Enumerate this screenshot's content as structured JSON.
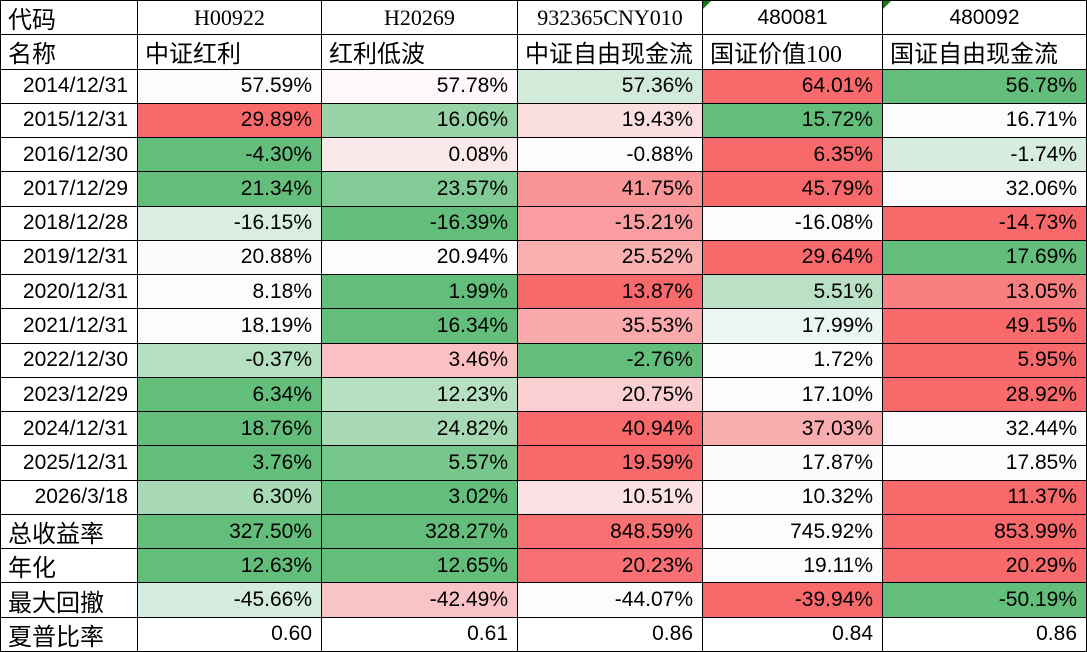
{
  "table": {
    "corner_labels": {
      "code": "代码",
      "name": "名称"
    },
    "columns": [
      {
        "code": "H00922",
        "name": "中证红利",
        "flag": false
      },
      {
        "code": "H20269",
        "name": "红利低波",
        "flag": false
      },
      {
        "code": "932365CNY010",
        "name": "中证自由现金流",
        "flag": false
      },
      {
        "code": "480081",
        "name": "国证价值100",
        "flag": true
      },
      {
        "code": "480092",
        "name": "国证自由现金流",
        "flag": true
      }
    ],
    "rows": [
      {
        "label": "2014/12/31",
        "label_style": "date",
        "format": "percent",
        "heatmap": true,
        "values": [
          57.59,
          57.78,
          57.36,
          64.01,
          56.78
        ]
      },
      {
        "label": "2015/12/31",
        "label_style": "date",
        "format": "percent",
        "heatmap": true,
        "values": [
          29.89,
          16.06,
          19.43,
          15.72,
          16.71
        ]
      },
      {
        "label": "2016/12/30",
        "label_style": "date",
        "format": "percent",
        "heatmap": true,
        "values": [
          -4.3,
          0.08,
          -0.88,
          6.35,
          -1.74
        ]
      },
      {
        "label": "2017/12/29",
        "label_style": "date",
        "format": "percent",
        "heatmap": true,
        "values": [
          21.34,
          23.57,
          41.75,
          45.79,
          32.06
        ]
      },
      {
        "label": "2018/12/28",
        "label_style": "date",
        "format": "percent",
        "heatmap": true,
        "values": [
          -16.15,
          -16.39,
          -15.21,
          -16.08,
          -14.73
        ]
      },
      {
        "label": "2019/12/31",
        "label_style": "date",
        "format": "percent",
        "heatmap": true,
        "values": [
          20.88,
          20.94,
          25.52,
          29.64,
          17.69
        ]
      },
      {
        "label": "2020/12/31",
        "label_style": "date",
        "format": "percent",
        "heatmap": true,
        "values": [
          8.18,
          1.99,
          13.87,
          5.51,
          13.05
        ]
      },
      {
        "label": "2021/12/31",
        "label_style": "date",
        "format": "percent",
        "heatmap": true,
        "values": [
          18.19,
          16.34,
          35.53,
          17.99,
          49.15
        ]
      },
      {
        "label": "2022/12/30",
        "label_style": "date",
        "format": "percent",
        "heatmap": true,
        "values": [
          -0.37,
          3.46,
          -2.76,
          1.72,
          5.95
        ]
      },
      {
        "label": "2023/12/29",
        "label_style": "date",
        "format": "percent",
        "heatmap": true,
        "values": [
          6.34,
          12.23,
          20.75,
          17.1,
          28.92
        ]
      },
      {
        "label": "2024/12/31",
        "label_style": "date",
        "format": "percent",
        "heatmap": true,
        "values": [
          18.76,
          24.82,
          40.94,
          37.03,
          32.44
        ]
      },
      {
        "label": "2025/12/31",
        "label_style": "date",
        "format": "percent",
        "heatmap": true,
        "values": [
          3.76,
          5.57,
          19.59,
          17.87,
          17.85
        ]
      },
      {
        "label": "2026/3/18",
        "label_style": "date",
        "format": "percent",
        "heatmap": true,
        "values": [
          6.3,
          3.02,
          10.51,
          10.32,
          11.37
        ]
      },
      {
        "label": "总收益率",
        "label_style": "cjk",
        "format": "percent",
        "heatmap": true,
        "values": [
          327.5,
          328.27,
          848.59,
          745.92,
          853.99
        ]
      },
      {
        "label": "年化",
        "label_style": "cjk",
        "format": "percent",
        "heatmap": true,
        "values": [
          12.63,
          12.65,
          20.23,
          19.11,
          20.29
        ]
      },
      {
        "label": "最大回撤",
        "label_style": "cjk",
        "format": "percent",
        "heatmap": true,
        "values": [
          -45.66,
          -42.49,
          -44.07,
          -39.94,
          -50.19
        ]
      },
      {
        "label": "夏普比率",
        "label_style": "cjk",
        "format": "number",
        "heatmap": false,
        "values": [
          0.6,
          0.61,
          0.86,
          0.84,
          0.86
        ]
      }
    ],
    "heatmap_colors": {
      "min_color": "#63BE7B",
      "mid_color": "#FCFCFF",
      "max_color": "#F8696B"
    },
    "flag_color": "#107C10",
    "border_color": "#000000"
  }
}
